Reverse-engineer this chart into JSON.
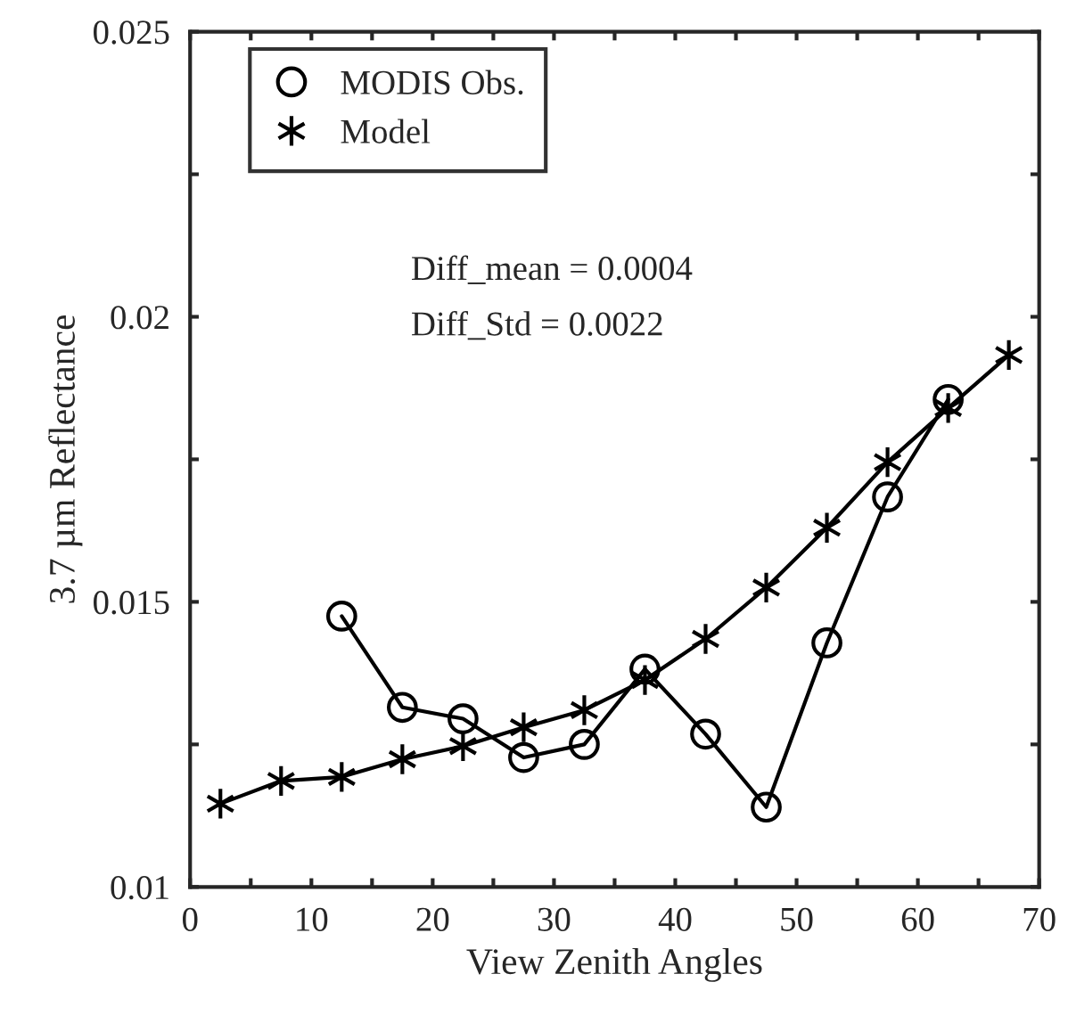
{
  "chart_data": {
    "type": "line",
    "xlabel": "View Zenith Angles",
    "ylabel": "3.7 µm Reflectance",
    "xlim": [
      0,
      70
    ],
    "ylim": [
      0.01,
      0.025
    ],
    "xticks": [
      0,
      {
        "value": 5,
        "label": null
      },
      10,
      {
        "value": 15,
        "label": null
      },
      20,
      {
        "value": 25,
        "label": null
      },
      30,
      {
        "value": 35,
        "label": null
      },
      40,
      {
        "value": 45,
        "label": null
      },
      50,
      {
        "value": 55,
        "label": null
      },
      60,
      {
        "value": 65,
        "label": null
      },
      70
    ],
    "yticks": [
      0.01,
      {
        "value": 0.0125,
        "label": null
      },
      0.015,
      {
        "value": 0.0175,
        "label": null
      },
      0.02,
      {
        "value": 0.0225,
        "label": null
      },
      0.025
    ],
    "x": [
      2.5,
      7.5,
      12.5,
      17.5,
      22.5,
      27.5,
      32.5,
      37.5,
      42.5,
      47.5,
      52.5,
      57.5,
      62.5,
      67.5
    ],
    "series": [
      {
        "name": "MODIS Obs.",
        "color": "#000000",
        "marker": "circle",
        "values": [
          null,
          null,
          0.01475,
          0.01315,
          0.01295,
          0.01227,
          0.0125,
          0.01382,
          0.01268,
          0.0114,
          0.01428,
          0.01684,
          0.01855,
          null
        ]
      },
      {
        "name": "Model",
        "color": "#000000",
        "marker": "cross",
        "values": [
          0.01146,
          0.01186,
          0.01193,
          0.01224,
          0.01247,
          0.0128,
          0.0131,
          0.01363,
          0.01435,
          0.01525,
          0.0163,
          0.01745,
          0.0184,
          0.01933
        ]
      }
    ],
    "annotations": [
      "Diff_mean = 0.0004",
      "Diff_Std = 0.0022"
    ],
    "legend": "top left",
    "grid": false,
    "line_style": "solid"
  }
}
